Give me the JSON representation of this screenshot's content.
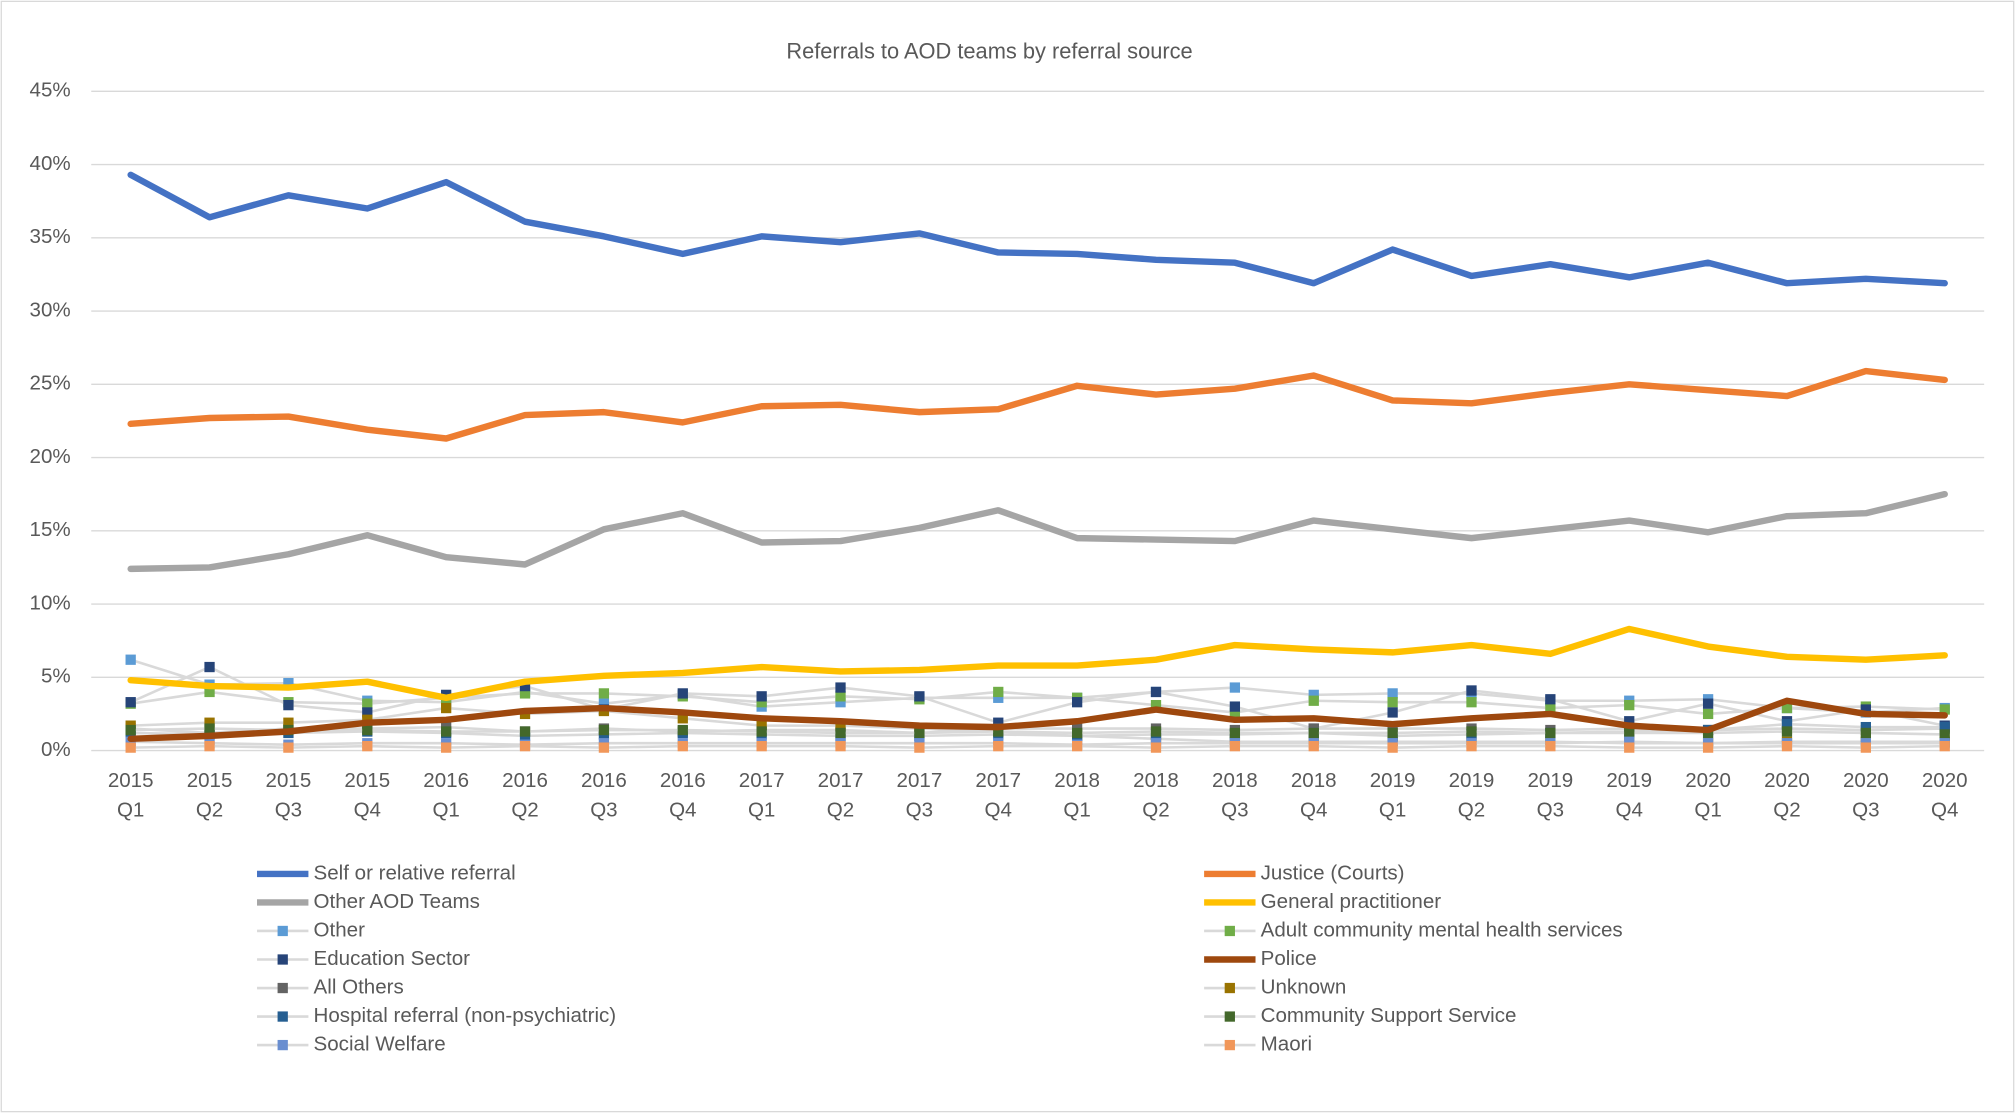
{
  "chart_data": {
    "type": "line",
    "title": "Referrals to AOD teams by referral source",
    "categories": [
      [
        "2015",
        "Q1"
      ],
      [
        "2015",
        "Q2"
      ],
      [
        "2015",
        "Q3"
      ],
      [
        "2015",
        "Q4"
      ],
      [
        "2016",
        "Q1"
      ],
      [
        "2016",
        "Q2"
      ],
      [
        "2016",
        "Q3"
      ],
      [
        "2016",
        "Q4"
      ],
      [
        "2017",
        "Q1"
      ],
      [
        "2017",
        "Q2"
      ],
      [
        "2017",
        "Q3"
      ],
      [
        "2017",
        "Q4"
      ],
      [
        "2018",
        "Q1"
      ],
      [
        "2018",
        "Q2"
      ],
      [
        "2018",
        "Q3"
      ],
      [
        "2018",
        "Q4"
      ],
      [
        "2019",
        "Q1"
      ],
      [
        "2019",
        "Q2"
      ],
      [
        "2019",
        "Q3"
      ],
      [
        "2019",
        "Q4"
      ],
      [
        "2020",
        "Q1"
      ],
      [
        "2020",
        "Q2"
      ],
      [
        "2020",
        "Q3"
      ],
      [
        "2020",
        "Q4"
      ]
    ],
    "ylim": [
      0,
      45
    ],
    "yticks": [
      {
        "value": 0,
        "label": "0%"
      },
      {
        "value": 5,
        "label": "5%"
      },
      {
        "value": 10,
        "label": "10%"
      },
      {
        "value": 15,
        "label": "15%"
      },
      {
        "value": 20,
        "label": "20%"
      },
      {
        "value": 25,
        "label": "25%"
      },
      {
        "value": 30,
        "label": "30%"
      },
      {
        "value": 35,
        "label": "35%"
      },
      {
        "value": 40,
        "label": "40%"
      },
      {
        "value": 45,
        "label": "45%"
      }
    ],
    "grid": true,
    "series": [
      {
        "name": "Self or relative referral",
        "color": "#4472c4",
        "marker": false,
        "values": [
          39.3,
          36.4,
          37.9,
          37.0,
          38.8,
          36.1,
          35.1,
          33.9,
          35.1,
          34.7,
          35.3,
          34.0,
          33.9,
          33.5,
          33.3,
          31.9,
          34.2,
          32.4,
          33.2,
          32.3,
          33.3,
          31.9,
          32.2,
          31.9
        ]
      },
      {
        "name": "Justice (Courts)",
        "color": "#ed7d31",
        "marker": false,
        "values": [
          22.3,
          22.7,
          22.8,
          21.9,
          21.3,
          22.9,
          23.1,
          22.4,
          23.5,
          23.6,
          23.1,
          23.3,
          24.9,
          24.3,
          24.7,
          25.6,
          23.9,
          23.7,
          24.4,
          25.0,
          24.6,
          24.2,
          25.9,
          25.3
        ]
      },
      {
        "name": "Other AOD Teams",
        "color": "#a5a5a5",
        "marker": false,
        "values": [
          12.4,
          12.5,
          13.4,
          14.7,
          13.2,
          12.7,
          15.1,
          16.2,
          14.2,
          14.3,
          15.2,
          16.4,
          14.5,
          14.4,
          14.3,
          15.7,
          15.1,
          14.5,
          15.1,
          15.7,
          14.9,
          16.0,
          16.2,
          17.5
        ]
      },
      {
        "name": "General practitioner",
        "color": "#ffc000",
        "marker": false,
        "values": [
          4.8,
          4.4,
          4.3,
          4.7,
          3.6,
          4.7,
          5.1,
          5.3,
          5.7,
          5.4,
          5.5,
          5.8,
          5.8,
          6.2,
          7.2,
          6.9,
          6.7,
          7.2,
          6.6,
          8.3,
          7.1,
          6.4,
          6.2,
          6.5
        ]
      },
      {
        "name": "Other",
        "color": "#5b9bd5",
        "marker": true,
        "line_color": "#d9d9d9",
        "values": [
          6.2,
          4.5,
          4.6,
          3.4,
          3.3,
          4.0,
          3.2,
          3.8,
          3.0,
          3.3,
          3.6,
          3.6,
          3.6,
          4.0,
          4.3,
          3.8,
          3.9,
          3.9,
          3.4,
          3.4,
          3.5,
          2.9,
          2.6,
          2.9
        ]
      },
      {
        "name": "Adult community mental health services",
        "color": "#70ad47",
        "marker": true,
        "line_color": "#d9d9d9",
        "values": [
          3.2,
          4.0,
          3.3,
          3.2,
          3.6,
          3.9,
          3.9,
          3.7,
          3.3,
          3.7,
          3.5,
          4.0,
          3.6,
          3.1,
          2.6,
          3.4,
          3.3,
          3.3,
          2.9,
          3.1,
          2.5,
          2.9,
          3.0,
          2.8
        ]
      },
      {
        "name": "Education Sector",
        "color": "#264478",
        "marker": true,
        "line_color": "#d9d9d9",
        "values": [
          3.3,
          5.7,
          3.1,
          2.6,
          3.8,
          4.4,
          2.8,
          3.9,
          3.7,
          4.3,
          3.7,
          1.9,
          3.3,
          4.0,
          3.0,
          1.5,
          2.6,
          4.1,
          3.5,
          2.0,
          3.2,
          2.0,
          2.8,
          1.7
        ]
      },
      {
        "name": "Police",
        "color": "#9e480e",
        "marker": false,
        "values": [
          0.8,
          1.0,
          1.3,
          1.9,
          2.1,
          2.7,
          2.9,
          2.6,
          2.2,
          2.0,
          1.7,
          1.6,
          2.0,
          2.8,
          2.1,
          2.2,
          1.8,
          2.2,
          2.5,
          1.7,
          1.4,
          3.4,
          2.5,
          2.4
        ]
      },
      {
        "name": "All Others",
        "color": "#636363",
        "marker": true,
        "line_color": "#d9d9d9",
        "values": [
          1.5,
          1.2,
          1.5,
          1.5,
          1.6,
          1.3,
          1.5,
          1.3,
          1.4,
          1.4,
          1.2,
          1.5,
          1.5,
          1.5,
          1.4,
          1.5,
          1.5,
          1.5,
          1.4,
          1.5,
          1.4,
          1.5,
          1.4,
          1.5
        ]
      },
      {
        "name": "Unknown",
        "color": "#997300",
        "marker": true,
        "line_color": "#d9d9d9",
        "values": [
          1.7,
          1.9,
          1.9,
          2.1,
          2.9,
          2.5,
          2.7,
          2.2,
          1.7,
          1.7,
          1.5,
          1.3,
          1.0,
          0.8,
          0.6,
          0.6,
          0.6,
          0.6,
          0.6,
          0.5,
          0.5,
          0.6,
          0.6,
          0.6
        ]
      },
      {
        "name": "Hospital referral (non-psychiatric)",
        "color": "#255e91",
        "marker": true,
        "line_color": "#d9d9d9",
        "values": [
          1.2,
          1.1,
          1.2,
          1.3,
          1.2,
          1.0,
          1.1,
          1.2,
          1.1,
          1.0,
          1.0,
          1.1,
          1.0,
          1.1,
          1.1,
          1.2,
          1.0,
          1.1,
          1.2,
          1.3,
          1.4,
          1.8,
          1.6,
          1.6
        ]
      },
      {
        "name": "Community Support Service",
        "color": "#43682b",
        "marker": true,
        "line_color": "#d9d9d9",
        "values": [
          1.4,
          1.5,
          1.4,
          1.4,
          1.3,
          1.3,
          1.4,
          1.4,
          1.3,
          1.2,
          1.2,
          1.3,
          1.2,
          1.3,
          1.2,
          1.2,
          1.2,
          1.3,
          1.2,
          1.2,
          1.2,
          1.3,
          1.2,
          1.1
        ]
      },
      {
        "name": "Social Welfare",
        "color": "#698ed0",
        "marker": true,
        "line_color": "#d9d9d9",
        "values": [
          0.6,
          0.5,
          0.4,
          0.5,
          0.5,
          0.4,
          0.5,
          0.5,
          0.5,
          0.5,
          0.5,
          0.5,
          0.4,
          0.5,
          0.5,
          0.5,
          0.5,
          0.5,
          0.5,
          0.6,
          0.5,
          0.5,
          0.5,
          0.5
        ]
      },
      {
        "name": "Maori",
        "color": "#f1975a",
        "marker": true,
        "line_color": "#d9d9d9",
        "values": [
          0.2,
          0.3,
          0.2,
          0.3,
          0.2,
          0.3,
          0.2,
          0.3,
          0.3,
          0.3,
          0.2,
          0.3,
          0.3,
          0.2,
          0.3,
          0.3,
          0.2,
          0.3,
          0.3,
          0.2,
          0.2,
          0.3,
          0.2,
          0.3
        ]
      }
    ]
  }
}
